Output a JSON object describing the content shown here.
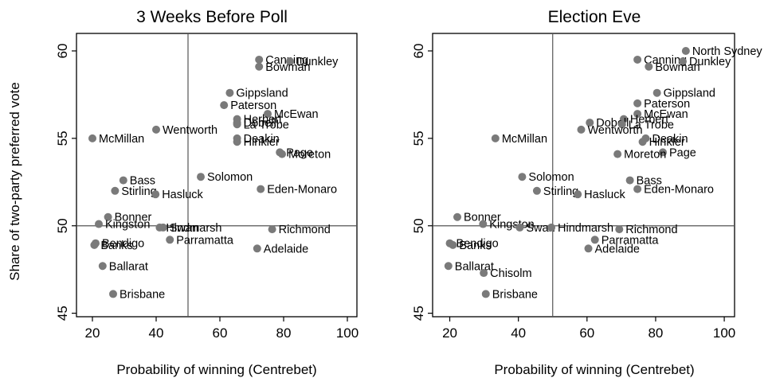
{
  "chart_data": {
    "type": "scatter",
    "ylabel": "Share of two-party preferred vote",
    "xlim": [
      15,
      103
    ],
    "ylim": [
      44.8,
      61
    ],
    "xticks": [
      20,
      40,
      60,
      80,
      100
    ],
    "yticks": [
      45,
      50,
      55,
      60
    ],
    "reference_lines": {
      "x": 50,
      "y": 50
    },
    "marker_color": "#7a7a7a",
    "panels": [
      {
        "title": "3 Weeks Before Poll",
        "xlabel": "Probability of winning (Centrebet)",
        "points": [
          {
            "label": "Canning",
            "x": 72.3,
            "y": 59.5
          },
          {
            "label": "Dunkley",
            "x": 82.0,
            "y": 59.4
          },
          {
            "label": "Bowman",
            "x": 72.3,
            "y": 59.1
          },
          {
            "label": "Gippsland",
            "x": 63.1,
            "y": 57.6
          },
          {
            "label": "Paterson",
            "x": 61.3,
            "y": 56.9
          },
          {
            "label": "McEwan",
            "x": 75.0,
            "y": 56.4
          },
          {
            "label": "Herbert",
            "x": 65.4,
            "y": 56.1
          },
          {
            "label": "Dobell",
            "x": 65.4,
            "y": 55.9
          },
          {
            "label": "La Trobe",
            "x": 65.4,
            "y": 55.8
          },
          {
            "label": "Wentworth",
            "x": 40.0,
            "y": 55.5
          },
          {
            "label": "McMillan",
            "x": 20.0,
            "y": 55.0
          },
          {
            "label": "Deakin",
            "x": 65.4,
            "y": 55.0
          },
          {
            "label": "Hinkler",
            "x": 65.4,
            "y": 54.8
          },
          {
            "label": "Page",
            "x": 78.8,
            "y": 54.2
          },
          {
            "label": "Moreton",
            "x": 79.5,
            "y": 54.1
          },
          {
            "label": "Solomon",
            "x": 54.0,
            "y": 52.8
          },
          {
            "label": "Bass",
            "x": 29.7,
            "y": 52.6
          },
          {
            "label": "Eden-Monaro",
            "x": 72.8,
            "y": 52.1
          },
          {
            "label": "Stirling",
            "x": 27.1,
            "y": 52.0
          },
          {
            "label": "Hasluck",
            "x": 39.8,
            "y": 51.8
          },
          {
            "label": "Bonner",
            "x": 24.9,
            "y": 50.5
          },
          {
            "label": "Kingston",
            "x": 22.0,
            "y": 50.1
          },
          {
            "label": "Hindmarsh",
            "x": 41.1,
            "y": 49.9
          },
          {
            "label": "Swan",
            "x": 42.2,
            "y": 49.9
          },
          {
            "label": "Richmond",
            "x": 76.4,
            "y": 49.8
          },
          {
            "label": "Parramatta",
            "x": 44.3,
            "y": 49.2
          },
          {
            "label": "Bendigo",
            "x": 21.0,
            "y": 49.0
          },
          {
            "label": "Banks",
            "x": 20.6,
            "y": 48.9
          },
          {
            "label": "Adelaide",
            "x": 71.7,
            "y": 48.7
          },
          {
            "label": "Ballarat",
            "x": 23.2,
            "y": 47.7
          },
          {
            "label": "Brisbane",
            "x": 26.5,
            "y": 46.1
          }
        ]
      },
      {
        "title": "Election Eve",
        "xlabel": "Probability of winning (Centrebet)",
        "points": [
          {
            "label": "North Sydney",
            "x": 88.8,
            "y": 60.0
          },
          {
            "label": "Canning",
            "x": 74.7,
            "y": 59.5
          },
          {
            "label": "Dunkley",
            "x": 87.9,
            "y": 59.4
          },
          {
            "label": "Bowman",
            "x": 78.0,
            "y": 59.1
          },
          {
            "label": "Gippsland",
            "x": 80.4,
            "y": 57.6
          },
          {
            "label": "Paterson",
            "x": 74.7,
            "y": 57.0
          },
          {
            "label": "McEwan",
            "x": 74.7,
            "y": 56.4
          },
          {
            "label": "Herbert",
            "x": 70.7,
            "y": 56.1
          },
          {
            "label": "Dobell",
            "x": 60.8,
            "y": 55.9
          },
          {
            "label": "La Trobe",
            "x": 70.2,
            "y": 55.8
          },
          {
            "label": "Wentworth",
            "x": 58.3,
            "y": 55.5
          },
          {
            "label": "McMillan",
            "x": 33.3,
            "y": 55.0
          },
          {
            "label": "Deakin",
            "x": 77.1,
            "y": 55.0
          },
          {
            "label": "Hinkler",
            "x": 76.2,
            "y": 54.8
          },
          {
            "label": "Page",
            "x": 82.1,
            "y": 54.2
          },
          {
            "label": "Moreton",
            "x": 68.9,
            "y": 54.1
          },
          {
            "label": "Solomon",
            "x": 41.1,
            "y": 52.8
          },
          {
            "label": "Bass",
            "x": 72.5,
            "y": 52.6
          },
          {
            "label": "Eden-Monaro",
            "x": 74.7,
            "y": 52.1
          },
          {
            "label": "Stirling",
            "x": 45.4,
            "y": 52.0
          },
          {
            "label": "Hasluck",
            "x": 57.3,
            "y": 51.8
          },
          {
            "label": "Bonner",
            "x": 22.2,
            "y": 50.5
          },
          {
            "label": "Kingston",
            "x": 29.7,
            "y": 50.1
          },
          {
            "label": "Swan",
            "x": 40.4,
            "y": 49.9
          },
          {
            "label": "Hindmarsh",
            "x": 49.6,
            "y": 49.9
          },
          {
            "label": "Richmond",
            "x": 69.4,
            "y": 49.8
          },
          {
            "label": "Parramatta",
            "x": 62.3,
            "y": 49.2
          },
          {
            "label": "Bendigo",
            "x": 20.0,
            "y": 49.0
          },
          {
            "label": "Banks",
            "x": 20.9,
            "y": 48.9
          },
          {
            "label": "Adelaide",
            "x": 60.4,
            "y": 48.7
          },
          {
            "label": "Ballarat",
            "x": 19.6,
            "y": 47.7
          },
          {
            "label": "Chisolm",
            "x": 29.9,
            "y": 47.3
          },
          {
            "label": "Brisbane",
            "x": 30.5,
            "y": 46.1
          }
        ]
      }
    ]
  }
}
